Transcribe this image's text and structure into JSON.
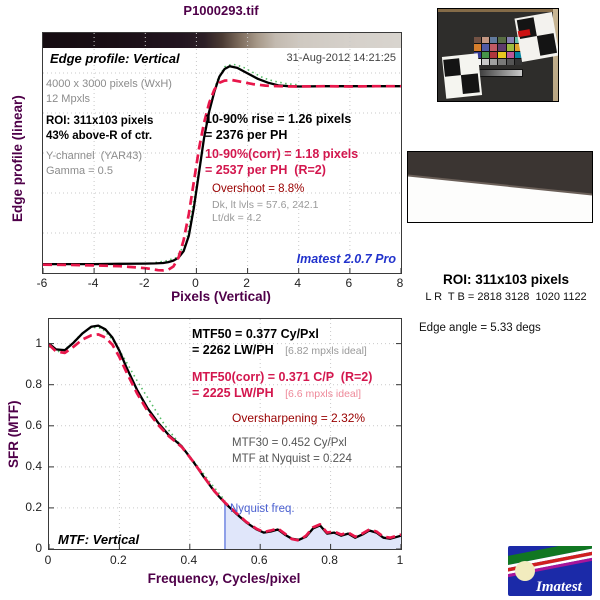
{
  "title": "P1000293.tif",
  "colors": {
    "purple_label": "#4F0049",
    "crimson": "#D3174E",
    "dark_red": "#990000",
    "brand_blue": "#2233CC",
    "nyquist_blue": "#4A5FD0",
    "nyquist_fill": "#D3DBF8"
  },
  "top_chart": {
    "label": "Edge profile: Vertical",
    "date": "31-Aug-2012 14:21:25",
    "info_line1": "4000 x 3000 pixels (WxH)",
    "info_line2": "12 Mpxls",
    "roi_line1": "ROI: 311x103 pixels",
    "roi_line2": "43% above-R of ctr.",
    "channel_line1": "Y-channel  (YAR43)",
    "channel_line2": "Gamma = 0.5",
    "rise_line1": "10-90% rise = 1.26 pixels",
    "rise_line2": "= 2376 per PH",
    "corr_line1": "10-90%(corr) = 1.18 pixels",
    "corr_line2": "= 2537 per PH  (R=2)",
    "overshoot": "Overshoot = 8.8%",
    "levels_line1": "Dk, lt lvls = 57.6, 242.1",
    "levels_line2": "Lt/dk = 4.2",
    "watermark": "Imatest 2.0.7 Pro",
    "gradient_stops": [
      "#150c11 0%",
      "#1a0f15 20%",
      "#221520 38%",
      "#2c1f26 45%",
      "#4a3a33 50%",
      "#7d6c5d 55%",
      "#a89a8a 60%",
      "#c3bab0 65%",
      "#cfc9c1 72%",
      "#d5d0ca 85%",
      "#d8d4ce 100%"
    ]
  },
  "bottom_chart": {
    "mtf50_line1": "MTF50 = 0.377 Cy/Pxl",
    "mtf50_line2": "= 2262 LW/PH",
    "mtf50_ideal": "[6.82 mpxls ideal]",
    "corr_line1": "MTF50(corr) = 0.371 C/P  (R=2)",
    "corr_line2": "= 2225 LW/PH",
    "corr_ideal": "[6.6 mpxls ideal]",
    "oversharpening": "Oversharpening = 2.32%",
    "mtf30": "MTF30 = 0.452 Cy/Pxl",
    "mtf_nyquist": "MTF at Nyquist = 0.224",
    "nyquist_label": "Nyquist freq.",
    "chart_label": "MTF: Vertical"
  },
  "right_panel": {
    "roi_title": "ROI: 311x103 pixels",
    "roi_coords": "L R  T B = 2818 3128  1020 1122",
    "edge_angle": "Edge angle = 5.33 degs",
    "logo_text": "Imatest",
    "colorchecker_patches": [
      "#735244",
      "#c29682",
      "#627a9d",
      "#576c43",
      "#8580b1",
      "#67bdaa",
      "#d67e2c",
      "#505ba6",
      "#c15a63",
      "#5e3c6c",
      "#9dbc40",
      "#e0a32e",
      "#383d96",
      "#469449",
      "#af363c",
      "#e7c71f",
      "#bb5695",
      "#0885a1",
      "#f3f3f2",
      "#c8c8c8",
      "#a0a0a0",
      "#7a7a79",
      "#555555",
      "#343434"
    ]
  },
  "chart_data": [
    {
      "type": "line",
      "title": "Edge profile: Vertical",
      "xlabel": "Pixels (Vertical)",
      "ylabel": "Edge profile (linear)",
      "xlim": [
        -6,
        8
      ],
      "ylim": [
        0,
        1.1
      ],
      "xticks": [
        -6,
        -4,
        -2,
        0,
        2,
        4,
        6,
        8
      ],
      "grid": true,
      "series": [
        {
          "name": "edge profile uncorrected (green dotted)",
          "style": "green",
          "x": [
            -1.6,
            -1.2,
            -0.8,
            -0.4,
            0,
            0.4,
            0.8,
            1.1,
            1.4,
            1.8,
            2.2,
            2.6,
            3,
            3.5,
            4
          ],
          "y": [
            0.048,
            0.055,
            0.07,
            0.14,
            0.4,
            0.7,
            0.88,
            0.945,
            0.958,
            0.945,
            0.92,
            0.895,
            0.88,
            0.868,
            0.862
          ]
        },
        {
          "name": "edge profile (black solid)",
          "style": "black",
          "x": [
            -6,
            -5,
            -4,
            -3,
            -2,
            -1.6,
            -1.3,
            -1.1,
            -0.9,
            -0.7,
            -0.5,
            -0.3,
            -0.1,
            0.1,
            0.3,
            0.5,
            0.7,
            0.9,
            1.1,
            1.3,
            1.6,
            2,
            2.4,
            2.8,
            3.2,
            3.6,
            4,
            5,
            6,
            7,
            8
          ],
          "y": [
            0.041,
            0.041,
            0.041,
            0.042,
            0.043,
            0.044,
            0.046,
            0.05,
            0.057,
            0.07,
            0.1,
            0.17,
            0.3,
            0.46,
            0.62,
            0.74,
            0.83,
            0.9,
            0.935,
            0.948,
            0.94,
            0.915,
            0.89,
            0.872,
            0.86,
            0.856,
            0.855,
            0.856,
            0.856,
            0.856,
            0.856
          ]
        },
        {
          "name": "edge profile corrected R=2 (red dashed)",
          "style": "red",
          "x": [
            -6,
            -5,
            -4,
            -3,
            -2.5,
            -2,
            -1.7,
            -1.5,
            -1.3,
            -1.1,
            -0.9,
            -0.7,
            -0.5,
            -0.3,
            -0.1,
            0.1,
            0.3,
            0.5,
            0.7,
            0.9,
            1.1,
            1.4,
            1.8,
            2.2,
            2.7,
            3.2,
            4,
            5,
            6,
            7,
            8
          ],
          "y": [
            0.038,
            0.037,
            0.035,
            0.031,
            0.027,
            0.022,
            0.017,
            0.013,
            0.012,
            0.015,
            0.03,
            0.07,
            0.15,
            0.27,
            0.42,
            0.57,
            0.69,
            0.78,
            0.84,
            0.872,
            0.882,
            0.884,
            0.875,
            0.866,
            0.859,
            0.856,
            0.855,
            0.856,
            0.855,
            0.856,
            0.856
          ]
        }
      ]
    },
    {
      "type": "line",
      "title": "MTF: Vertical",
      "xlabel": "Frequency, Cycles/pixel",
      "ylabel": "SFR (MTF)",
      "xlim": [
        0,
        1
      ],
      "ylim": [
        0,
        1.12
      ],
      "xticks": [
        0,
        0.2,
        0.4,
        0.6,
        0.8,
        1
      ],
      "yticks": [
        0,
        0.2,
        0.4,
        0.6,
        0.8,
        1
      ],
      "grid": true,
      "nyquist_x": 0.5,
      "series": [
        {
          "name": "MTF uncorrected (green dotted)",
          "style": "green",
          "x": [
            0,
            0.03,
            0.06,
            0.09,
            0.12,
            0.15,
            0.18,
            0.21,
            0.25,
            0.29,
            0.33,
            0.37,
            0.41,
            0.46,
            0.5
          ],
          "y": [
            0.985,
            0.96,
            0.99,
            1.045,
            1.08,
            1.075,
            1.02,
            0.94,
            0.82,
            0.71,
            0.6,
            0.515,
            0.43,
            0.32,
            0.235
          ]
        },
        {
          "name": "MTF (black solid)",
          "style": "black",
          "x": [
            0,
            0.02,
            0.045,
            0.07,
            0.095,
            0.12,
            0.14,
            0.16,
            0.18,
            0.2,
            0.22,
            0.25,
            0.28,
            0.31,
            0.34,
            0.377,
            0.41,
            0.44,
            0.47,
            0.5,
            0.53,
            0.56,
            0.59,
            0.61,
            0.63,
            0.65,
            0.67,
            0.69,
            0.71,
            0.73,
            0.75,
            0.77,
            0.79,
            0.81,
            0.83,
            0.85,
            0.87,
            0.89,
            0.91,
            0.93,
            0.95,
            0.97,
            1.0
          ],
          "y": [
            1.0,
            0.972,
            0.968,
            1.005,
            1.05,
            1.082,
            1.088,
            1.07,
            1.03,
            0.965,
            0.885,
            0.775,
            0.685,
            0.615,
            0.555,
            0.5,
            0.425,
            0.35,
            0.28,
            0.224,
            0.175,
            0.13,
            0.095,
            0.08,
            0.085,
            0.095,
            0.07,
            0.05,
            0.045,
            0.06,
            0.1,
            0.115,
            0.075,
            0.08,
            0.065,
            0.075,
            0.055,
            0.07,
            0.09,
            0.08,
            0.055,
            0.05,
            0.065
          ]
        },
        {
          "name": "MTF corrected R=2 (red dashed)",
          "style": "red",
          "x": [
            0,
            0.02,
            0.045,
            0.07,
            0.095,
            0.12,
            0.14,
            0.16,
            0.18,
            0.2,
            0.22,
            0.25,
            0.28,
            0.31,
            0.34,
            0.377,
            0.41,
            0.44,
            0.47,
            0.5,
            0.53,
            0.56,
            0.59,
            0.61,
            0.63,
            0.65,
            0.67,
            0.69,
            0.71,
            0.73,
            0.75,
            0.77,
            0.79,
            0.81,
            0.83,
            0.85,
            0.87,
            0.89,
            0.91,
            0.93,
            0.95,
            0.97,
            1.0
          ],
          "y": [
            0.995,
            0.962,
            0.955,
            0.985,
            1.02,
            1.04,
            1.045,
            1.03,
            0.995,
            0.935,
            0.862,
            0.758,
            0.672,
            0.605,
            0.55,
            0.497,
            0.425,
            0.352,
            0.282,
            0.226,
            0.178,
            0.133,
            0.098,
            0.083,
            0.09,
            0.1,
            0.075,
            0.048,
            0.042,
            0.065,
            0.105,
            0.12,
            0.08,
            0.085,
            0.07,
            0.08,
            0.06,
            0.075,
            0.095,
            0.085,
            0.06,
            0.055,
            0.07
          ]
        }
      ]
    }
  ]
}
